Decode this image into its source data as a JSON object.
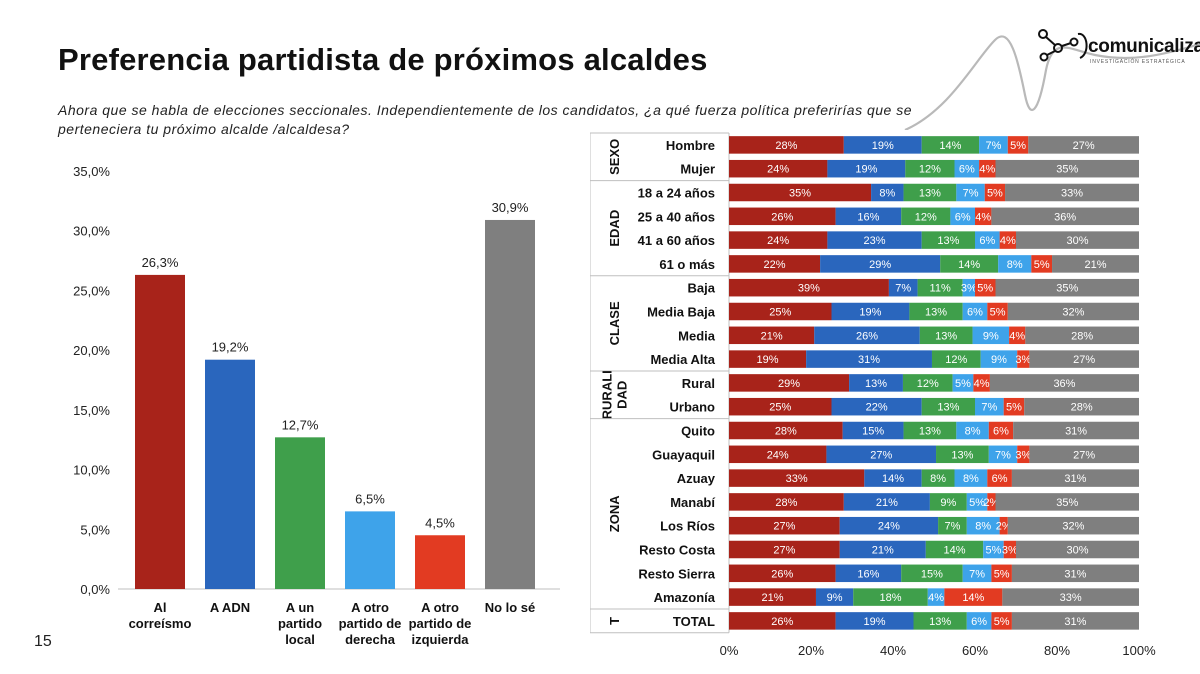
{
  "title": "Preferencia partidista de próximos alcaldes",
  "subtitle": "Ahora que se habla de elecciones seccionales. Independientemente de los candidatos, ¿a qué fuerza política preferirías que se perteneciera tu próximo alcalde /alcaldesa?",
  "page_number": "15",
  "logo": {
    "name": "comunicaliza",
    "tagline": "INVESTIGACIÓN ESTRATÉGICA"
  },
  "colors": {
    "correismo": "#a8231a",
    "adn": "#2a66bd",
    "local": "#3f9f4b",
    "derecha": "#3ea3ea",
    "izquierda": "#e23b22",
    "nolose": "#7f7f7f"
  },
  "chart_data": [
    {
      "type": "bar",
      "title": "",
      "xlabel": "",
      "ylabel": "",
      "ylim": [
        0,
        35
      ],
      "yticks": [
        "0,0%",
        "5,0%",
        "10,0%",
        "15,0%",
        "20,0%",
        "25,0%",
        "30,0%",
        "35,0%"
      ],
      "categories": [
        [
          "Al",
          "correísmo"
        ],
        [
          "A ADN"
        ],
        [
          "A un",
          "partido",
          "local"
        ],
        [
          "A otro",
          "partido de",
          "derecha"
        ],
        [
          "A otro",
          "partido de",
          "izquierda"
        ],
        [
          "No lo sé"
        ]
      ],
      "values": [
        26.3,
        19.2,
        12.7,
        6.5,
        4.5,
        30.9
      ],
      "labels": [
        "26,3%",
        "19,2%",
        "12,7%",
        "6,5%",
        "4,5%",
        "30,9%"
      ],
      "bar_colors": [
        "#a8231a",
        "#2a66bd",
        "#3f9f4b",
        "#3ea3ea",
        "#e23b22",
        "#7f7f7f"
      ]
    },
    {
      "type": "bar",
      "orientation": "horizontal-stacked-100",
      "xticks": [
        "0%",
        "20%",
        "40%",
        "60%",
        "80%",
        "100%"
      ],
      "series_colors": [
        "#a8231a",
        "#2a66bd",
        "#3f9f4b",
        "#3ea3ea",
        "#e23b22",
        "#7f7f7f"
      ],
      "groups": [
        {
          "name": "SEXO",
          "rows": [
            {
              "label": "Hombre",
              "values": [
                28,
                19,
                14,
                7,
                5,
                27
              ]
            },
            {
              "label": "Mujer",
              "values": [
                24,
                19,
                12,
                6,
                4,
                35
              ]
            }
          ]
        },
        {
          "name": "EDAD",
          "rows": [
            {
              "label": "18 a 24 años",
              "values": [
                35,
                8,
                13,
                7,
                5,
                33
              ]
            },
            {
              "label": "25 a 40 años",
              "values": [
                26,
                16,
                12,
                6,
                4,
                36
              ]
            },
            {
              "label": "41 a 60 años",
              "values": [
                24,
                23,
                13,
                6,
                4,
                30
              ]
            },
            {
              "label": "61 o más",
              "values": [
                22,
                29,
                14,
                8,
                5,
                21
              ]
            }
          ]
        },
        {
          "name": "CLASE",
          "rows": [
            {
              "label": "Baja",
              "values": [
                39,
                7,
                11,
                3,
                5,
                35
              ]
            },
            {
              "label": "Media Baja",
              "values": [
                25,
                19,
                13,
                6,
                5,
                32
              ]
            },
            {
              "label": "Media",
              "values": [
                21,
                26,
                13,
                9,
                4,
                28
              ]
            },
            {
              "label": "Media Alta",
              "values": [
                19,
                31,
                12,
                9,
                3,
                27
              ]
            }
          ]
        },
        {
          "name": "RURALI DAD",
          "lines": [
            "RURALI",
            "DAD"
          ],
          "rows": [
            {
              "label": "Rural",
              "values": [
                29,
                13,
                12,
                5,
                4,
                36
              ]
            },
            {
              "label": "Urbano",
              "values": [
                25,
                22,
                13,
                7,
                5,
                28
              ]
            }
          ]
        },
        {
          "name": "ZONA",
          "rows": [
            {
              "label": "Quito",
              "values": [
                28,
                15,
                13,
                8,
                6,
                31
              ]
            },
            {
              "label": "Guayaquil",
              "values": [
                24,
                27,
                13,
                7,
                3,
                27
              ]
            },
            {
              "label": "Azuay",
              "values": [
                33,
                14,
                8,
                8,
                6,
                31
              ]
            },
            {
              "label": "Manabí",
              "values": [
                28,
                21,
                9,
                5,
                2,
                35
              ]
            },
            {
              "label": "Los Ríos",
              "values": [
                27,
                24,
                7,
                8,
                2,
                32
              ]
            },
            {
              "label": "Resto Costa",
              "values": [
                27,
                21,
                14,
                5,
                3,
                30
              ]
            },
            {
              "label": "Resto Sierra",
              "values": [
                26,
                16,
                15,
                7,
                5,
                31
              ]
            },
            {
              "label": "Amazonía",
              "values": [
                21,
                9,
                18,
                4,
                14,
                33
              ]
            }
          ]
        },
        {
          "name": "T",
          "rows": [
            {
              "label": "TOTAL",
              "values": [
                26,
                19,
                13,
                6,
                5,
                31
              ]
            }
          ]
        }
      ]
    }
  ]
}
